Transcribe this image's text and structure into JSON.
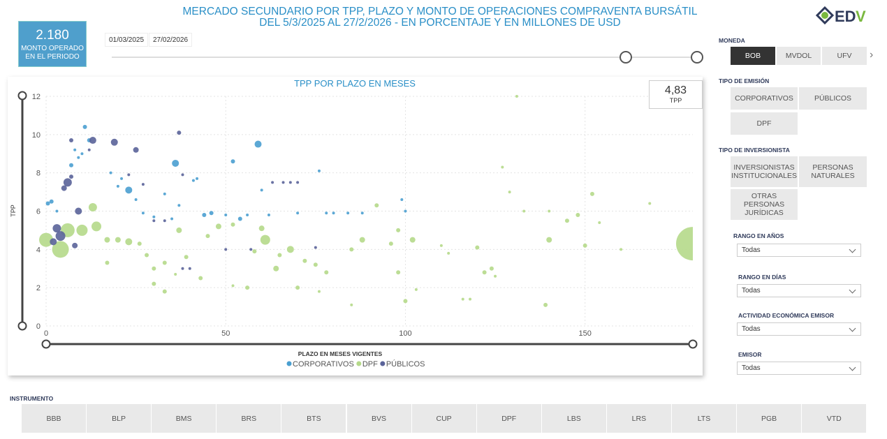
{
  "header": {
    "title_line1": "MERCADO SECUNDARIO POR TPP, PLAZO Y MONTO DE OPERACIONES COMPRAVENTA BURSÁTIL",
    "title_line2": "DEL 5/3/2025 AL 27/2/2026 - EN PORCENTAJE Y EN MILLONES DE USD",
    "logo_text": "EDV"
  },
  "kpi": {
    "value": "2.180",
    "label": "MONTO OPERADO EN EL PERIODO"
  },
  "date_range": {
    "start": "01/03/2025",
    "end": "27/02/2026",
    "slider_position": [
      0.88,
      1.0
    ]
  },
  "chart_card": {
    "tpp_value": "4,83",
    "tpp_label": "TPP"
  },
  "filters": {
    "moneda": {
      "label": "MONEDA",
      "options": [
        "BOB",
        "MVDOL",
        "UFV"
      ],
      "selected": "BOB"
    },
    "tipo_emision": {
      "label": "TIPO DE EMISIÓN",
      "options": [
        "CORPORATIVOS",
        "PÚBLICOS",
        "DPF"
      ]
    },
    "tipo_inversionista": {
      "label": "TIPO DE INVERSIONISTA",
      "options": [
        "INVERSIONISTAS INSTITUCIONALES",
        "PERSONAS NATURALES",
        "OTRAS PERSONAS JURÍDICAS"
      ]
    },
    "rango_anos": {
      "label": "RANGO EN AÑOS",
      "value": "Todas"
    },
    "rango_dias": {
      "label": "RANGO EN DÍAS",
      "value": "Todas"
    },
    "actividad": {
      "label": "ACTIVIDAD ECONÓMICA EMISOR",
      "value": "Todas"
    },
    "emisor": {
      "label": "EMISOR",
      "value": "Todas"
    }
  },
  "instrumento": {
    "label": "INSTRUMENTO",
    "options": [
      "BBB",
      "BLP",
      "BMS",
      "BRS",
      "BTS",
      "BVS",
      "CUP",
      "DPF",
      "LBS",
      "LRS",
      "LTS",
      "PGB",
      "VTD"
    ]
  },
  "chart_data": {
    "type": "scatter",
    "title": "TPP POR PLAZO EN MESES",
    "xlabel": "PLAZO EN MESES VIGENTES",
    "ylabel": "TPP",
    "xlim": [
      0,
      180
    ],
    "ylim": [
      0,
      12
    ],
    "xticks": [
      0,
      50,
      100,
      150
    ],
    "yticks": [
      0,
      2,
      4,
      6,
      8,
      10,
      12
    ],
    "grid": true,
    "legend": "bottom",
    "series": [
      {
        "name": "CORPORATIVOS",
        "color": "#4a9fd0",
        "points": [
          [
            10.8,
            10.4,
            3
          ],
          [
            12,
            9.7,
            3
          ],
          [
            8,
            9.2,
            2
          ],
          [
            10,
            9,
            2
          ],
          [
            7,
            8.4,
            3
          ],
          [
            9,
            8.8,
            2
          ],
          [
            18,
            8,
            2
          ],
          [
            36,
            8.5,
            5
          ],
          [
            52,
            8.6,
            3
          ],
          [
            59,
            9.5,
            5
          ],
          [
            21,
            7.7,
            2
          ],
          [
            23,
            7.1,
            5
          ],
          [
            33,
            6.9,
            2
          ],
          [
            41,
            7.6,
            2
          ],
          [
            42,
            7.7,
            2
          ],
          [
            60,
            7.1,
            2
          ],
          [
            0.5,
            6.4,
            3
          ],
          [
            1.5,
            6.5,
            3
          ],
          [
            3,
            6,
            2
          ],
          [
            20,
            7.3,
            2
          ],
          [
            25,
            6.6,
            2
          ],
          [
            37,
            6.3,
            2
          ],
          [
            44,
            5.8,
            3
          ],
          [
            46,
            5.9,
            3
          ],
          [
            50,
            5.8,
            2
          ],
          [
            54,
            5.6,
            3
          ],
          [
            56,
            5.8,
            2
          ],
          [
            62,
            5.8,
            2
          ],
          [
            70,
            5.9,
            2
          ],
          [
            76,
            8.1,
            2
          ],
          [
            78,
            5.9,
            2
          ],
          [
            80,
            5.9,
            2
          ],
          [
            84,
            5.9,
            2
          ],
          [
            88,
            5.9,
            2
          ],
          [
            99,
            6.6,
            2
          ],
          [
            100,
            6,
            2
          ],
          [
            27,
            5.9,
            2
          ],
          [
            30,
            5.7,
            2
          ],
          [
            35,
            5.6,
            2
          ]
        ]
      },
      {
        "name": "DPF",
        "color": "#b5d98a",
        "points": [
          [
            180,
            4.3,
            24
          ],
          [
            4,
            4,
            12
          ],
          [
            0,
            4.5,
            10
          ],
          [
            6,
            5,
            10
          ],
          [
            10,
            5,
            8
          ],
          [
            14,
            5.2,
            7
          ],
          [
            13,
            6.2,
            6
          ],
          [
            17,
            4.5,
            4
          ],
          [
            20,
            4.5,
            4
          ],
          [
            23,
            4.4,
            5
          ],
          [
            26,
            4.3,
            3
          ],
          [
            28,
            3.7,
            3
          ],
          [
            17,
            3.3,
            3
          ],
          [
            30,
            3,
            3
          ],
          [
            33,
            3.3,
            3
          ],
          [
            37,
            5,
            4
          ],
          [
            39,
            3.6,
            3
          ],
          [
            45,
            4.7,
            3
          ],
          [
            48,
            5.2,
            4
          ],
          [
            52,
            5.3,
            3
          ],
          [
            60,
            5.1,
            4
          ],
          [
            61,
            4.5,
            7
          ],
          [
            58,
            3.9,
            3
          ],
          [
            64,
            3,
            4
          ],
          [
            65,
            3.7,
            3
          ],
          [
            68,
            4,
            5
          ],
          [
            72,
            3.4,
            3
          ],
          [
            75,
            3.2,
            3
          ],
          [
            78,
            2.8,
            3
          ],
          [
            85,
            4,
            3
          ],
          [
            88,
            4.5,
            4
          ],
          [
            92,
            6.3,
            3
          ],
          [
            96,
            4.3,
            3
          ],
          [
            98,
            5,
            3
          ],
          [
            102,
            4.5,
            4
          ],
          [
            110,
            4.2,
            2
          ],
          [
            112,
            3.8,
            2
          ],
          [
            120,
            4.1,
            3
          ],
          [
            124,
            3,
            3
          ],
          [
            127,
            8.3,
            2
          ],
          [
            129,
            7,
            2
          ],
          [
            133,
            6,
            2
          ],
          [
            140,
            6,
            2
          ],
          [
            145,
            5.5,
            3
          ],
          [
            148,
            5.8,
            3
          ],
          [
            152,
            6.9,
            3
          ],
          [
            154,
            5.4,
            2
          ],
          [
            160,
            4,
            2
          ],
          [
            168,
            6.4,
            2
          ],
          [
            131,
            12,
            2
          ],
          [
            140,
            4.5,
            4
          ],
          [
            139,
            1.1,
            3
          ],
          [
            150,
            4.2,
            3
          ],
          [
            100,
            1.3,
            3
          ],
          [
            85,
            1.1,
            2
          ],
          [
            76,
            1.8,
            2
          ],
          [
            70,
            2,
            3
          ],
          [
            56,
            2,
            3
          ],
          [
            52,
            2.1,
            2
          ],
          [
            43,
            2.5,
            3
          ],
          [
            36,
            2.7,
            2
          ],
          [
            33,
            1.8,
            3
          ],
          [
            30,
            2.2,
            3
          ],
          [
            116,
            1.4,
            2
          ],
          [
            118,
            1.4,
            2
          ],
          [
            122,
            2.8,
            3
          ],
          [
            125,
            2.6,
            2
          ],
          [
            103,
            1.9,
            2
          ],
          [
            98,
            2.8,
            3
          ]
        ]
      },
      {
        "name": "PÚBLICOS",
        "color": "#5a6399",
        "points": [
          [
            7,
            9.7,
            3
          ],
          [
            13,
            9.7,
            5
          ],
          [
            19,
            9.6,
            5
          ],
          [
            37,
            10.1,
            3
          ],
          [
            25,
            9.2,
            4
          ],
          [
            12,
            9.2,
            2
          ],
          [
            7,
            7.8,
            3
          ],
          [
            5,
            7.2,
            4
          ],
          [
            6,
            7.5,
            6
          ],
          [
            23,
            7.9,
            2
          ],
          [
            38,
            7.9,
            2
          ],
          [
            27,
            7.4,
            2
          ],
          [
            9,
            6,
            5
          ],
          [
            3,
            5.1,
            6
          ],
          [
            4,
            4.7,
            7
          ],
          [
            2,
            4.4,
            5
          ],
          [
            8,
            4.2,
            4
          ],
          [
            30,
            5.5,
            2
          ],
          [
            33,
            5.5,
            2
          ],
          [
            50,
            4,
            2
          ],
          [
            57,
            4,
            2
          ],
          [
            63,
            7.5,
            2
          ],
          [
            66,
            7.5,
            2
          ],
          [
            68,
            7.5,
            2
          ],
          [
            70,
            7.5,
            2
          ],
          [
            75,
            4.1,
            2
          ],
          [
            38,
            3,
            2
          ],
          [
            40,
            3,
            2
          ]
        ]
      }
    ]
  }
}
